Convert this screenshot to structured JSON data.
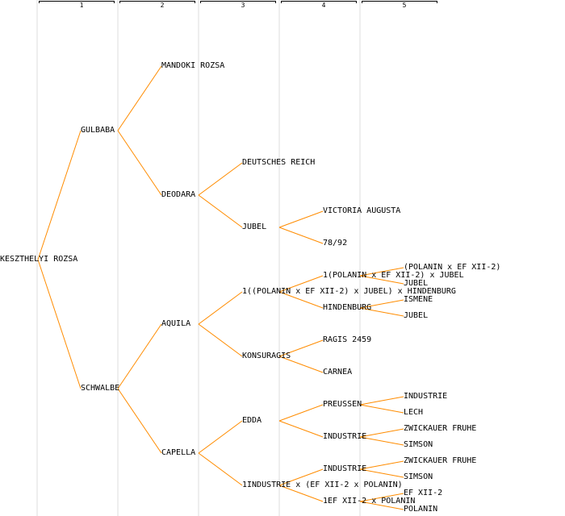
{
  "generations": [
    "1",
    "2",
    "3",
    "4",
    "5"
  ],
  "line_color": "#ff8c00",
  "tree": {
    "name": "KESZTHELYI ROZSA",
    "children": [
      {
        "name": "GULBABA",
        "children": [
          {
            "name": "MANDOKI ROZSA"
          },
          {
            "name": "DEODARA",
            "children": [
              {
                "name": "DEUTSCHES REICH"
              },
              {
                "name": "JUBEL",
                "children": [
                  {
                    "name": "VICTORIA AUGUSTA"
                  },
                  {
                    "name": "78/92"
                  }
                ]
              }
            ]
          }
        ]
      },
      {
        "name": "SCHWALBE",
        "children": [
          {
            "name": "AQUILA",
            "children": [
              {
                "name": "1((POLANIN x EF XII-2) x JUBEL) x HINDENBURG",
                "children": [
                  {
                    "name": "1(POLANIN x EF XII-2) x JUBEL",
                    "children": [
                      {
                        "name": "(POLANIN x EF XII-2)"
                      },
                      {
                        "name": "JUBEL"
                      }
                    ]
                  },
                  {
                    "name": "HINDENBURG",
                    "children": [
                      {
                        "name": "ISMENE"
                      },
                      {
                        "name": "JUBEL"
                      }
                    ]
                  }
                ]
              },
              {
                "name": "KONSURAGIS",
                "children": [
                  {
                    "name": "RAGIS 2459"
                  },
                  {
                    "name": "CARNEA"
                  }
                ]
              }
            ]
          },
          {
            "name": "CAPELLA",
            "children": [
              {
                "name": "EDDA",
                "children": [
                  {
                    "name": "PREUSSEN",
                    "children": [
                      {
                        "name": "INDUSTRIE"
                      },
                      {
                        "name": "LECH"
                      }
                    ]
                  },
                  {
                    "name": "INDUSTRIE",
                    "children": [
                      {
                        "name": "ZWICKAUER FRUHE"
                      },
                      {
                        "name": "SIMSON"
                      }
                    ]
                  }
                ]
              },
              {
                "name": "1INDUSTRIE x (EF XII-2 x POLANIN)",
                "children": [
                  {
                    "name": "INDUSTRIE",
                    "children": [
                      {
                        "name": "ZWICKAUER FRUHE"
                      },
                      {
                        "name": "SIMSON"
                      }
                    ]
                  },
                  {
                    "name": "1EF XII-2 x POLANIN",
                    "children": [
                      {
                        "name": "EF XII-2"
                      },
                      {
                        "name": "POLANIN"
                      }
                    ]
                  }
                ]
              }
            ]
          }
        ]
      }
    ]
  }
}
